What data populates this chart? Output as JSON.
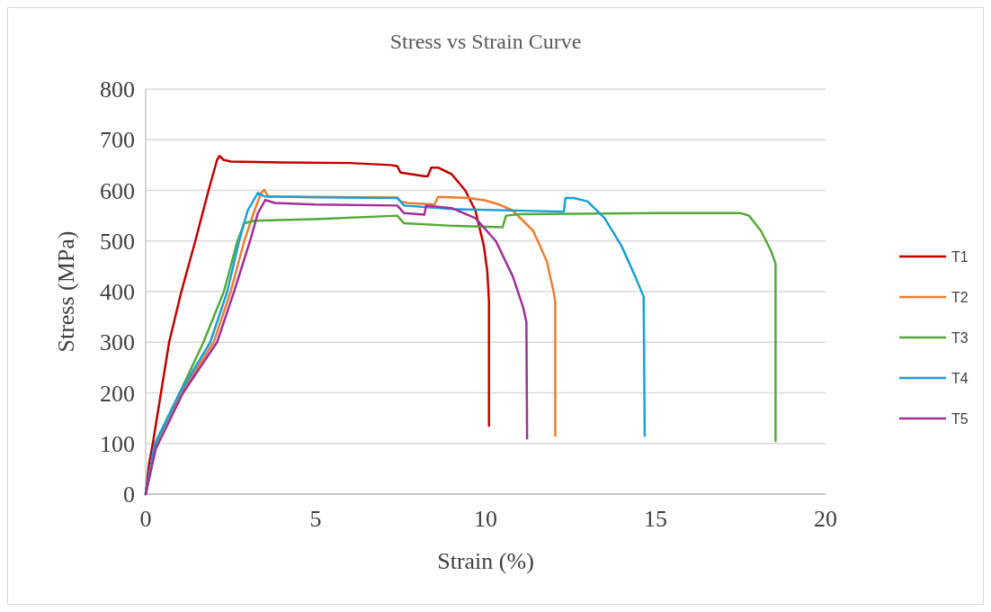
{
  "chart_data": {
    "type": "line",
    "title": "Stress vs Strain Curve",
    "xlabel": "Strain (%)",
    "ylabel": "Stress (MPa)",
    "xlim": [
      0,
      20
    ],
    "xticks": [
      0,
      5,
      10,
      15,
      20
    ],
    "ylim": [
      0,
      800
    ],
    "yticks": [
      0,
      100,
      200,
      300,
      400,
      500,
      600,
      700,
      800
    ],
    "grid": "y",
    "legend": "right",
    "marker": "none",
    "line_style": "solid",
    "series": [
      {
        "name": "T1",
        "color": "#c00000",
        "x": [
          0,
          0.1,
          0.21,
          0.45,
          0.69,
          1.05,
          1.46,
          1.85,
          2.1,
          2.17,
          2.3,
          2.5,
          4,
          6,
          7.2,
          7.4,
          7.5,
          8.2,
          8.3,
          8.4,
          8.6,
          9,
          9.4,
          9.7,
          9.95,
          10.05,
          10.1,
          10.1
        ],
        "values": [
          0,
          60,
          100,
          200,
          300,
          400,
          500,
          600,
          660,
          668,
          660,
          657,
          655,
          654,
          650,
          648,
          635,
          628,
          628,
          645,
          645,
          632,
          600,
          560,
          490,
          440,
          380,
          135
        ]
      },
      {
        "name": "T2",
        "color": "#ed7d31",
        "x": [
          0,
          0.28,
          1.05,
          2.0,
          2.5,
          2.9,
          3.2,
          3.4,
          3.49,
          3.6,
          5,
          7.4,
          7.5,
          7.7,
          8.5,
          8.6,
          9.5,
          10,
          10.4,
          10.8,
          11.4,
          11.8,
          12.0,
          12.05,
          12.05
        ],
        "values": [
          0,
          100,
          200,
          300,
          400,
          500,
          560,
          595,
          601,
          588,
          587,
          586,
          578,
          575,
          572,
          587,
          585,
          580,
          572,
          560,
          520,
          460,
          400,
          380,
          115
        ]
      },
      {
        "name": "T3",
        "color": "#56a83a",
        "x": [
          0,
          0.3,
          1.0,
          1.7,
          2.3,
          2.7,
          2.9,
          3.2,
          5,
          7.4,
          7.6,
          9,
          10.5,
          10.6,
          11,
          15,
          17.5,
          17.75,
          18.1,
          18.4,
          18.53,
          18.53
        ],
        "values": [
          0,
          100,
          200,
          300,
          400,
          500,
          535,
          540,
          543,
          550,
          535,
          530,
          527,
          550,
          553,
          555,
          555,
          550,
          520,
          480,
          455,
          105
        ]
      },
      {
        "name": "T4",
        "color": "#18a0d8",
        "x": [
          0,
          0.27,
          1.0,
          1.9,
          2.4,
          2.75,
          3.0,
          3.3,
          3.5,
          5,
          7.4,
          7.6,
          9,
          12.3,
          12.35,
          12.6,
          13,
          13.5,
          14,
          14.4,
          14.65,
          14.68
        ],
        "values": [
          0,
          100,
          200,
          300,
          400,
          500,
          560,
          595,
          588,
          586,
          585,
          570,
          563,
          558,
          585,
          585,
          578,
          545,
          490,
          430,
          390,
          115
        ]
      },
      {
        "name": "T5",
        "color": "#a0309a",
        "x": [
          0,
          0.3,
          1.1,
          2.1,
          2.6,
          3.07,
          3.3,
          3.52,
          3.8,
          5,
          7.4,
          7.6,
          8.2,
          8.25,
          9,
          9.7,
          10.3,
          10.8,
          11.1,
          11.2,
          11.22
        ],
        "values": [
          0,
          90,
          200,
          300,
          400,
          500,
          555,
          581,
          575,
          572,
          570,
          555,
          552,
          570,
          565,
          545,
          500,
          430,
          370,
          340,
          110
        ]
      }
    ]
  }
}
